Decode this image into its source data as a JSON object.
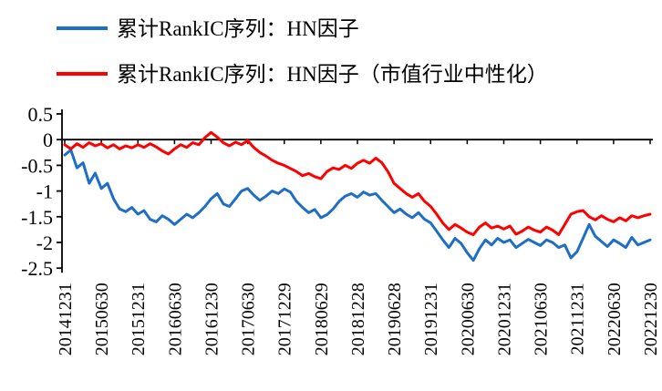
{
  "legend": {
    "items": [
      {
        "label": "累计RankIC序列：HN因子",
        "color": "#1F6EC6"
      },
      {
        "label": "累计RankIC序列：HN因子（市值行业中性化）",
        "color": "#FF0000"
      }
    ]
  },
  "chart_data": {
    "type": "line",
    "title": "",
    "xlabel": "",
    "ylabel": "",
    "ylim": [
      -2.5,
      0.5
    ],
    "y_ticks": [
      0.5,
      0,
      -0.5,
      -1,
      -1.5,
      -2,
      -2.5
    ],
    "y_tick_labels": [
      "0.5",
      "0",
      "-0.5",
      "-1",
      "-1.5",
      "-2",
      "-2.5"
    ],
    "x_tick_labels": [
      "20141231",
      "20150630",
      "20151231",
      "20160630",
      "20161230",
      "20170630",
      "20171229",
      "20180629",
      "20181228",
      "20190628",
      "20191231",
      "20200630",
      "20201231",
      "20210630",
      "20211231",
      "20220630",
      "20221230"
    ],
    "x_ticks_every_n_points": 6,
    "legend_position": "top-left",
    "grid": false,
    "series": [
      {
        "name": "累计RankIC序列：HN因子",
        "color": "#1F6EC6",
        "values": [
          -0.3,
          -0.2,
          -0.55,
          -0.45,
          -0.85,
          -0.65,
          -0.95,
          -0.85,
          -1.15,
          -1.35,
          -1.4,
          -1.32,
          -1.45,
          -1.38,
          -1.55,
          -1.6,
          -1.48,
          -1.55,
          -1.65,
          -1.55,
          -1.45,
          -1.52,
          -1.42,
          -1.3,
          -1.15,
          -1.05,
          -1.25,
          -1.3,
          -1.15,
          -1.0,
          -0.95,
          -1.08,
          -1.18,
          -1.1,
          -1.0,
          -1.05,
          -0.96,
          -1.02,
          -1.2,
          -1.32,
          -1.42,
          -1.36,
          -1.52,
          -1.46,
          -1.35,
          -1.2,
          -1.1,
          -1.05,
          -1.12,
          -1.02,
          -1.08,
          -1.05,
          -1.18,
          -1.3,
          -1.42,
          -1.35,
          -1.45,
          -1.52,
          -1.42,
          -1.55,
          -1.62,
          -1.78,
          -1.95,
          -2.1,
          -1.92,
          -2.02,
          -2.2,
          -2.35,
          -2.12,
          -1.95,
          -2.05,
          -1.92,
          -2.0,
          -1.95,
          -2.1,
          -2.02,
          -1.94,
          -2.0,
          -2.06,
          -1.95,
          -2.0,
          -2.1,
          -2.05,
          -2.3,
          -2.18,
          -1.92,
          -1.65,
          -1.88,
          -1.98,
          -2.08,
          -1.95,
          -2.02,
          -2.1,
          -1.9,
          -2.05,
          -2.0,
          -1.95
        ]
      },
      {
        "name": "累计RankIC序列：HN因子（市值行业中性化）",
        "color": "#FF0000",
        "values": [
          -0.1,
          -0.18,
          -0.08,
          -0.15,
          -0.06,
          -0.12,
          -0.08,
          -0.16,
          -0.1,
          -0.18,
          -0.12,
          -0.16,
          -0.1,
          -0.15,
          -0.08,
          -0.14,
          -0.22,
          -0.28,
          -0.18,
          -0.1,
          -0.15,
          -0.06,
          -0.1,
          0.04,
          0.14,
          0.05,
          -0.06,
          -0.12,
          -0.05,
          -0.1,
          -0.02,
          -0.15,
          -0.25,
          -0.32,
          -0.4,
          -0.46,
          -0.5,
          -0.56,
          -0.62,
          -0.7,
          -0.66,
          -0.72,
          -0.76,
          -0.62,
          -0.55,
          -0.58,
          -0.5,
          -0.56,
          -0.46,
          -0.4,
          -0.46,
          -0.36,
          -0.45,
          -0.62,
          -0.85,
          -0.95,
          -1.05,
          -1.12,
          -1.05,
          -1.2,
          -1.3,
          -1.45,
          -1.62,
          -1.75,
          -1.65,
          -1.72,
          -1.8,
          -1.85,
          -1.7,
          -1.62,
          -1.72,
          -1.68,
          -1.74,
          -1.68,
          -1.84,
          -1.78,
          -1.7,
          -1.76,
          -1.8,
          -1.7,
          -1.76,
          -1.85,
          -1.65,
          -1.45,
          -1.4,
          -1.38,
          -1.5,
          -1.56,
          -1.48,
          -1.55,
          -1.6,
          -1.52,
          -1.58,
          -1.48,
          -1.52,
          -1.48,
          -1.45
        ]
      }
    ]
  }
}
